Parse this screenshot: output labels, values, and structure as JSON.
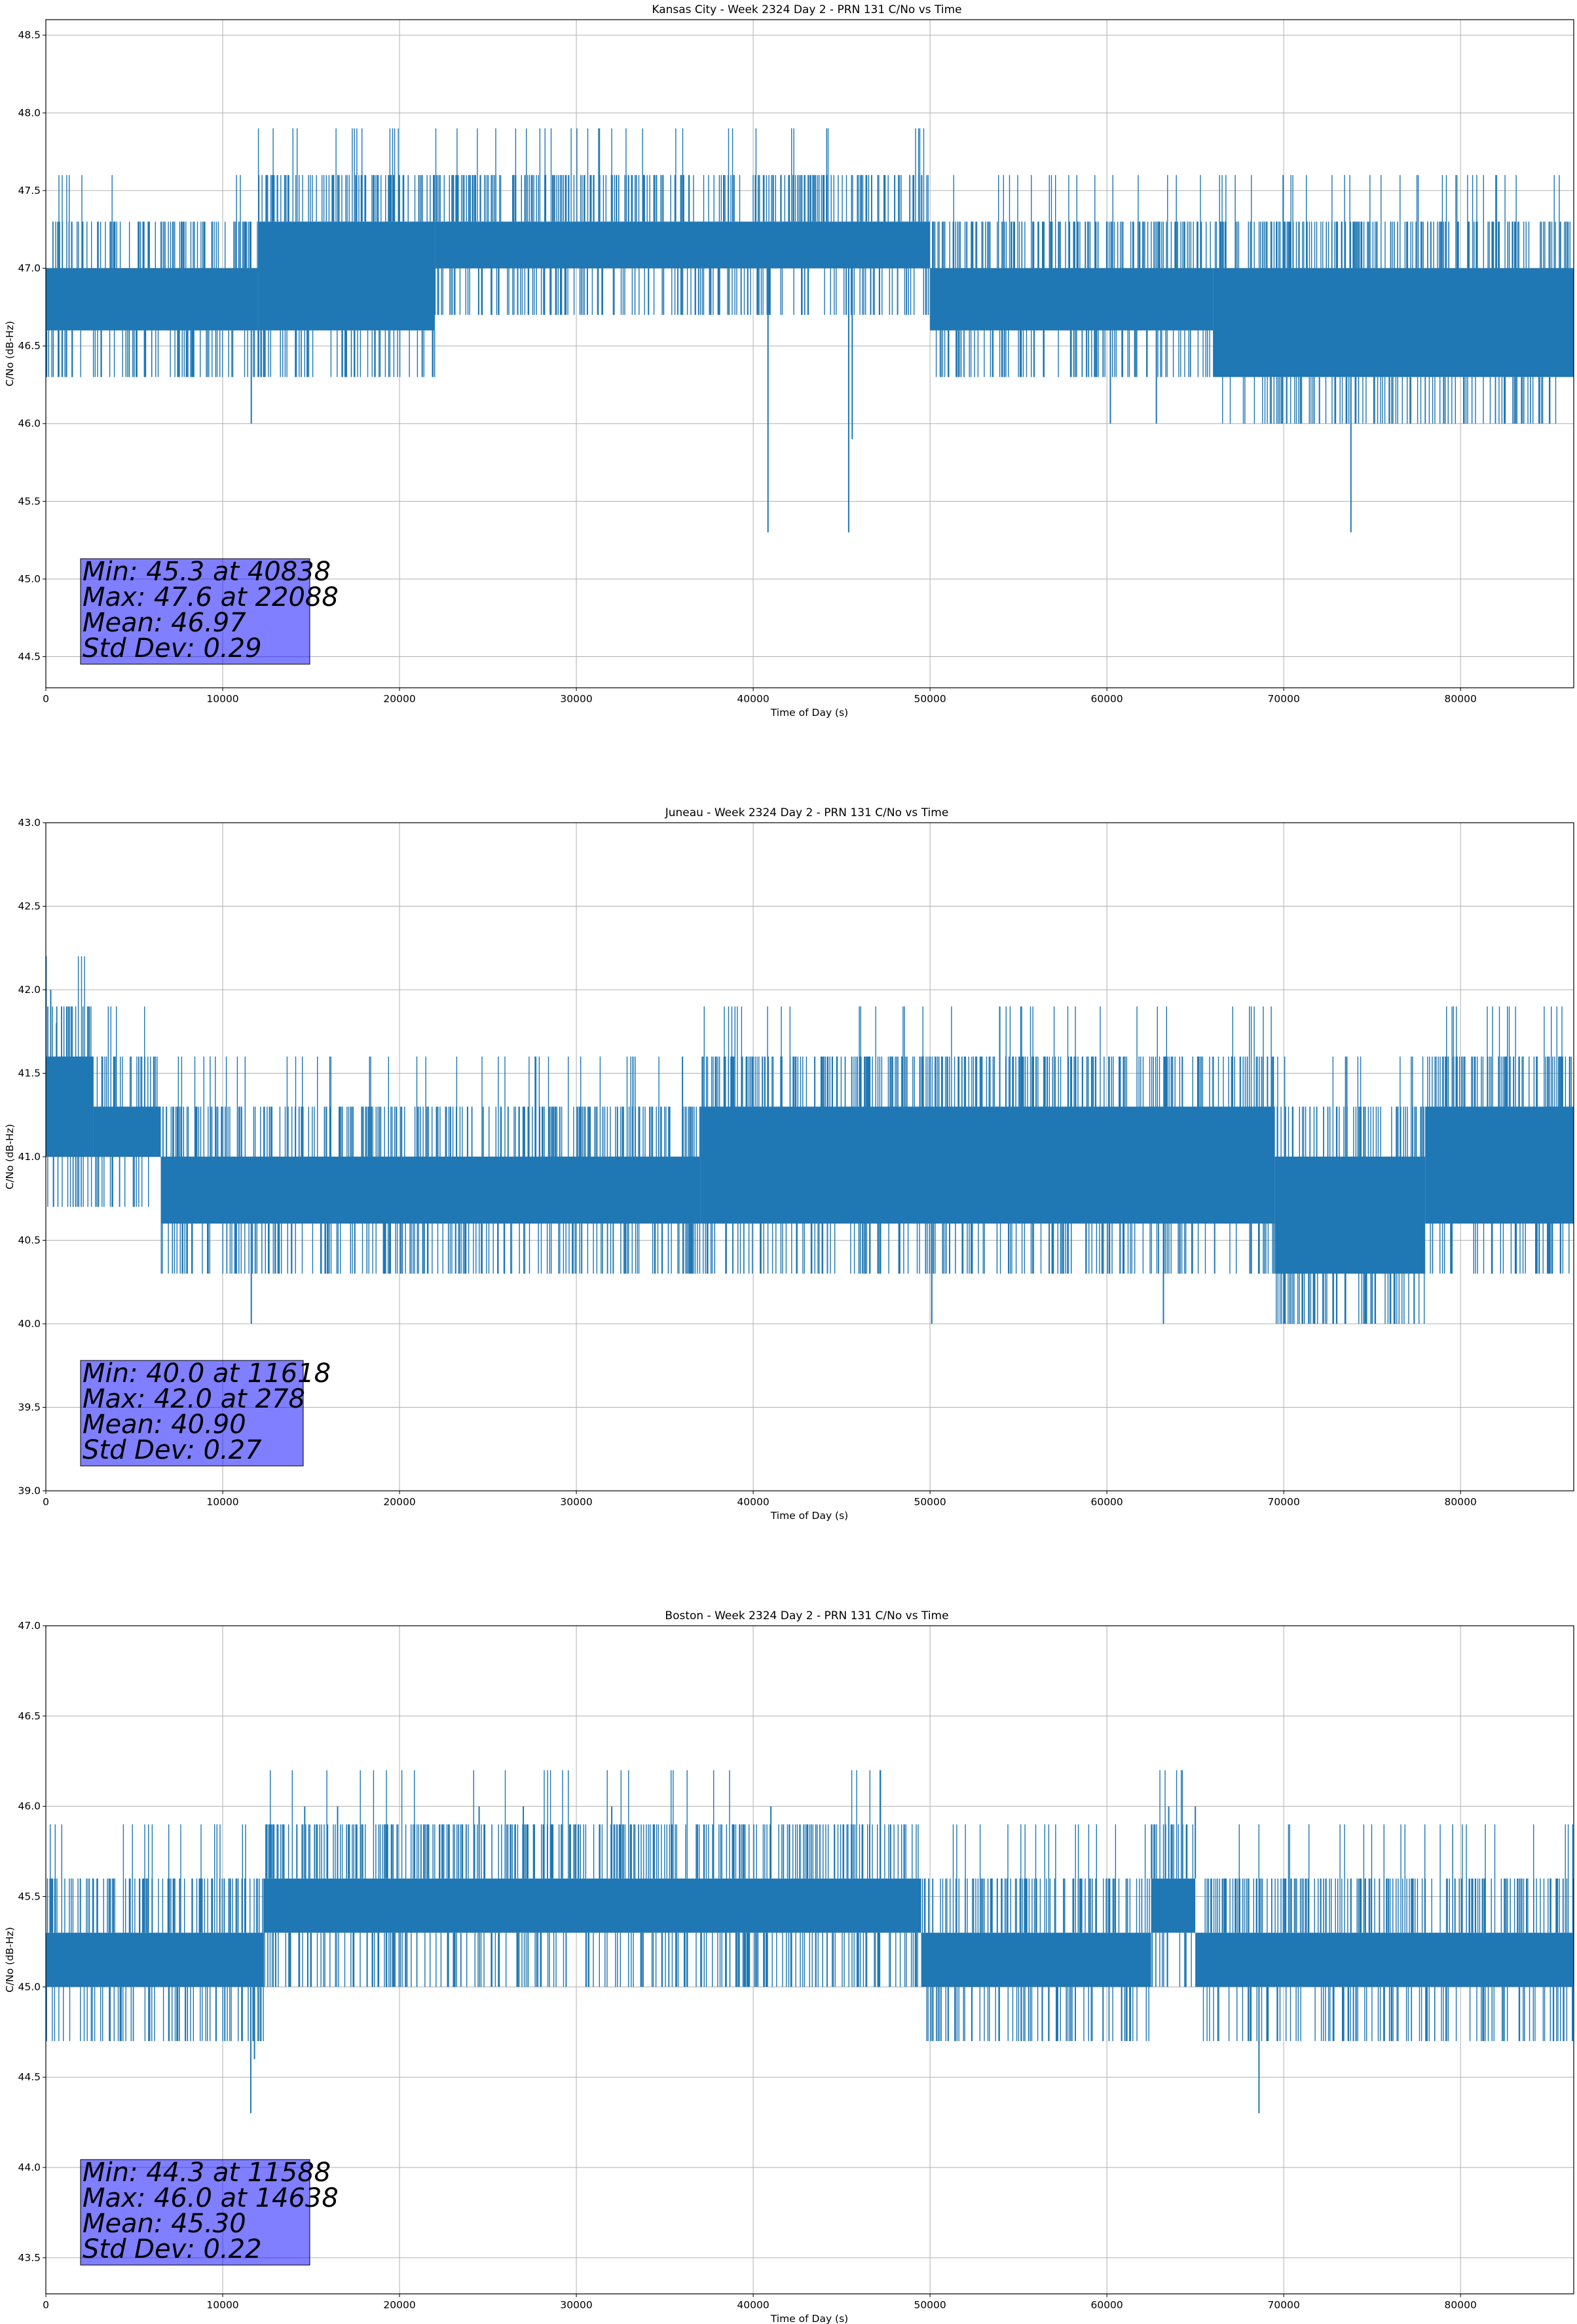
{
  "figure": {
    "background": "#ffffff",
    "line_color": "#1f77b4",
    "stats_box_color": "#8080ff"
  },
  "chart_data": [
    {
      "type": "line",
      "title": "Kansas City - Week 2324 Day 2 - PRN 131 C/No vs Time",
      "xlabel": "Time of Day (s)",
      "ylabel": "C/No (dB-Hz)",
      "xlim": [
        0,
        86400
      ],
      "ylim": [
        44.3,
        48.6
      ],
      "xticks": [
        0,
        10000,
        20000,
        30000,
        40000,
        50000,
        60000,
        70000,
        80000
      ],
      "yticks": [
        44.5,
        45.0,
        45.5,
        46.0,
        46.5,
        47.0,
        47.5,
        48.0,
        48.5
      ],
      "grid": true,
      "series": [
        {
          "values": "C/No samples, 1 s interval, quantized 0.3 dB-Hz"
        }
      ],
      "base_level": [
        {
          "x": [
            0,
            12000
          ],
          "low": 46.6,
          "high": 47.0
        },
        {
          "x": [
            12000,
            22000
          ],
          "low": 46.6,
          "high": 47.3
        },
        {
          "x": [
            22000,
            50000
          ],
          "low": 47.0,
          "high": 47.3
        },
        {
          "x": [
            50000,
            66000
          ],
          "low": 46.6,
          "high": 47.0
        },
        {
          "x": [
            66000,
            86400
          ],
          "low": 46.3,
          "high": 47.0
        }
      ],
      "extremes": [
        {
          "x": 40838,
          "y": 45.3
        },
        {
          "x": 45400,
          "y": 45.3
        },
        {
          "x": 73800,
          "y": 45.3
        },
        {
          "x": 11618,
          "y": 46.0
        },
        {
          "x": 60200,
          "y": 46.0
        },
        {
          "x": 62800,
          "y": 46.0
        },
        {
          "x": 71000,
          "y": 46.0
        },
        {
          "x": 45600,
          "y": 45.9
        },
        {
          "x": 22088,
          "y": 47.6
        },
        {
          "x": 25000,
          "y": 47.6
        },
        {
          "x": 33800,
          "y": 47.6
        },
        {
          "x": 44000,
          "y": 47.6
        },
        {
          "x": 48000,
          "y": 47.6
        }
      ],
      "stats": {
        "min_label": "Min: 45.3 at 40838",
        "max_label": "Max: 47.6 at 22088",
        "mean_label": "Mean: 46.97",
        "std_label": "Std Dev: 0.29",
        "min": 45.3,
        "min_at": 40838,
        "max": 47.6,
        "max_at": 22088,
        "mean": 46.97,
        "std": 0.29
      }
    },
    {
      "type": "line",
      "title": "Juneau - Week 2324 Day 2 - PRN 131 C/No vs Time",
      "xlabel": "Time of Day (s)",
      "ylabel": "C/No (dB-Hz)",
      "xlim": [
        0,
        86400
      ],
      "ylim": [
        39.0,
        43.0
      ],
      "xticks": [
        0,
        10000,
        20000,
        30000,
        40000,
        50000,
        60000,
        70000,
        80000
      ],
      "yticks": [
        39.0,
        39.5,
        40.0,
        40.5,
        41.0,
        41.5,
        42.0,
        42.5,
        43.0
      ],
      "grid": true,
      "series": [
        {
          "values": "C/No samples, 1 s interval, quantized 0.3 dB-Hz"
        }
      ],
      "base_level": [
        {
          "x": [
            0,
            2700
          ],
          "low": 41.0,
          "high": 41.6
        },
        {
          "x": [
            2700,
            6500
          ],
          "low": 41.0,
          "high": 41.3
        },
        {
          "x": [
            6500,
            37000
          ],
          "low": 40.6,
          "high": 41.0
        },
        {
          "x": [
            37000,
            69500
          ],
          "low": 40.6,
          "high": 41.3
        },
        {
          "x": [
            69500,
            78000
          ],
          "low": 40.3,
          "high": 41.0
        },
        {
          "x": [
            78000,
            86400
          ],
          "low": 40.6,
          "high": 41.3
        }
      ],
      "extremes": [
        {
          "x": 278,
          "y": 42.0
        },
        {
          "x": 600,
          "y": 41.8
        },
        {
          "x": 11618,
          "y": 40.0
        },
        {
          "x": 50100,
          "y": 40.0
        },
        {
          "x": 63200,
          "y": 40.0
        },
        {
          "x": 70000,
          "y": 40.0
        },
        {
          "x": 73000,
          "y": 40.0
        },
        {
          "x": 75000,
          "y": 40.0
        },
        {
          "x": 33200,
          "y": 41.6
        },
        {
          "x": 36000,
          "y": 41.6
        },
        {
          "x": 56000,
          "y": 41.6
        },
        {
          "x": 58000,
          "y": 41.6
        },
        {
          "x": 66000,
          "y": 41.6
        },
        {
          "x": 73500,
          "y": 41.6
        },
        {
          "x": 79000,
          "y": 41.6
        },
        {
          "x": 83000,
          "y": 41.6
        }
      ],
      "stats": {
        "min_label": "Min: 40.0 at 11618",
        "max_label": "Max: 42.0 at 278",
        "mean_label": "Mean: 40.90",
        "std_label": "Std Dev: 0.27",
        "min": 40.0,
        "min_at": 11618,
        "max": 42.0,
        "max_at": 278,
        "mean": 40.9,
        "std": 0.27
      }
    },
    {
      "type": "line",
      "title": "Boston - Week 2324 Day 2 - PRN 131 C/No vs Time",
      "xlabel": "Time of Day (s)",
      "ylabel": "C/No (dB-Hz)",
      "xlim": [
        0,
        86400
      ],
      "ylim": [
        43.3,
        47.0
      ],
      "xticks": [
        0,
        10000,
        20000,
        30000,
        40000,
        50000,
        60000,
        70000,
        80000
      ],
      "yticks": [
        43.5,
        44.0,
        44.5,
        45.0,
        45.5,
        46.0,
        46.5,
        47.0
      ],
      "grid": true,
      "series": [
        {
          "values": "C/No samples, 1 s interval, quantized 0.3 dB-Hz"
        }
      ],
      "base_level": [
        {
          "x": [
            0,
            12300
          ],
          "low": 45.0,
          "high": 45.3
        },
        {
          "x": [
            12300,
            49500
          ],
          "low": 45.3,
          "high": 45.6
        },
        {
          "x": [
            49500,
            62500
          ],
          "low": 45.0,
          "high": 45.3
        },
        {
          "x": [
            62500,
            65000
          ],
          "low": 45.3,
          "high": 45.6
        },
        {
          "x": [
            65000,
            86400
          ],
          "low": 45.0,
          "high": 45.3
        }
      ],
      "extremes": [
        {
          "x": 11588,
          "y": 44.3
        },
        {
          "x": 68600,
          "y": 44.3
        },
        {
          "x": 11800,
          "y": 44.6
        },
        {
          "x": 14638,
          "y": 46.0
        },
        {
          "x": 16500,
          "y": 46.0
        },
        {
          "x": 24500,
          "y": 46.0
        },
        {
          "x": 27000,
          "y": 46.0
        },
        {
          "x": 32000,
          "y": 46.0
        },
        {
          "x": 41000,
          "y": 46.0
        },
        {
          "x": 63500,
          "y": 46.0
        },
        {
          "x": 65000,
          "y": 46.0
        }
      ],
      "stats": {
        "min_label": "Min: 44.3 at 11588",
        "max_label": "Max: 46.0 at 14638",
        "mean_label": "Mean: 45.30",
        "std_label": "Std Dev: 0.22",
        "min": 44.3,
        "min_at": 11588,
        "max": 46.0,
        "max_at": 14638,
        "mean": 45.3,
        "std": 0.22
      }
    }
  ]
}
